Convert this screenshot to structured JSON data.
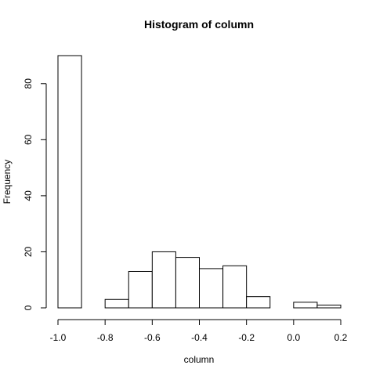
{
  "chart_data": {
    "type": "bar",
    "title": "Histogram of column",
    "xlabel": "column",
    "ylabel": "Frequency",
    "xlim": [
      -1.0,
      0.2
    ],
    "ylim": [
      0,
      90
    ],
    "bins": [
      {
        "start": -1.0,
        "end": -0.9,
        "count": 90
      },
      {
        "start": -0.9,
        "end": -0.8,
        "count": 0
      },
      {
        "start": -0.8,
        "end": -0.7,
        "count": 3
      },
      {
        "start": -0.7,
        "end": -0.6,
        "count": 13
      },
      {
        "start": -0.6,
        "end": -0.5,
        "count": 20
      },
      {
        "start": -0.5,
        "end": -0.4,
        "count": 18
      },
      {
        "start": -0.4,
        "end": -0.3,
        "count": 14
      },
      {
        "start": -0.3,
        "end": -0.2,
        "count": 15
      },
      {
        "start": -0.2,
        "end": -0.1,
        "count": 4
      },
      {
        "start": -0.1,
        "end": 0.0,
        "count": 0
      },
      {
        "start": 0.0,
        "end": 0.1,
        "count": 2
      },
      {
        "start": 0.1,
        "end": 0.2,
        "count": 1
      }
    ],
    "x_ticks": [
      -1.0,
      -0.8,
      -0.6,
      -0.4,
      -0.2,
      0.0,
      0.2
    ],
    "x_tick_labels": [
      "-1.0",
      "-0.8",
      "-0.6",
      "-0.4",
      "-0.2",
      "0.0",
      "0.2"
    ],
    "y_ticks": [
      0,
      20,
      40,
      60,
      80
    ],
    "y_tick_labels": [
      "0",
      "20",
      "40",
      "60",
      "80"
    ],
    "bar_fill": "#ffffff",
    "bar_stroke": "#000000",
    "grid": false
  }
}
